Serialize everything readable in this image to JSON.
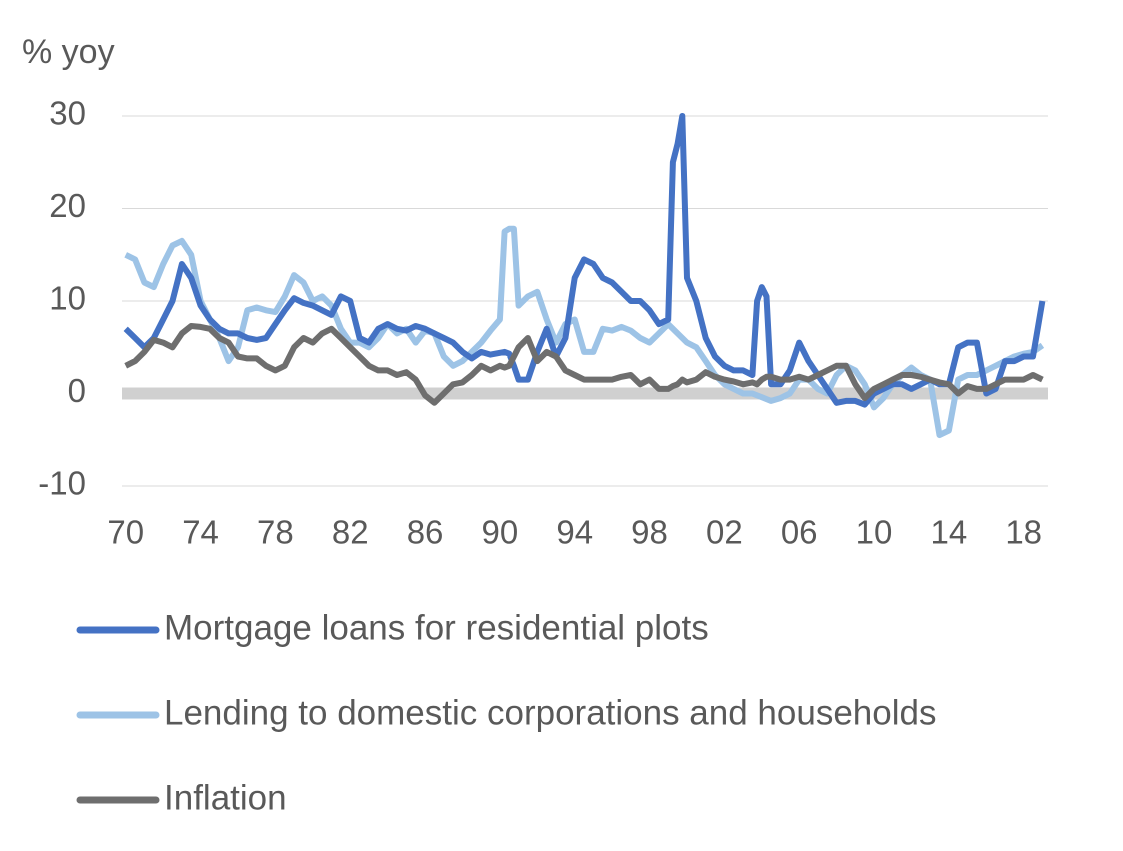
{
  "chart_data": {
    "type": "line",
    "y_label": "% yoy",
    "x": [
      1970,
      1970.5,
      1971,
      1971.5,
      1972,
      1972.5,
      1973,
      1973.5,
      1974,
      1974.5,
      1975,
      1975.5,
      1976,
      1976.5,
      1977,
      1977.5,
      1978,
      1978.5,
      1979,
      1979.5,
      1980,
      1980.5,
      1981,
      1981.5,
      1982,
      1982.5,
      1983,
      1983.5,
      1984,
      1984.5,
      1985,
      1985.5,
      1986,
      1986.5,
      1987,
      1987.5,
      1988,
      1988.5,
      1989,
      1989.5,
      1990,
      1990.25,
      1990.5,
      1990.75,
      1991,
      1991.5,
      1992,
      1992.5,
      1993,
      1993.5,
      1994,
      1994.5,
      1995,
      1995.5,
      1996,
      1996.5,
      1997,
      1997.5,
      1998,
      1998.5,
      1999,
      1999.25,
      1999.5,
      1999.75,
      2000,
      2000.5,
      2001,
      2001.5,
      2002,
      2002.5,
      2003,
      2003.5,
      2003.75,
      2004,
      2004.25,
      2004.5,
      2005,
      2005.5,
      2006,
      2006.5,
      2007,
      2007.5,
      2008,
      2008.5,
      2009,
      2009.5,
      2010,
      2010.5,
      2011,
      2011.5,
      2012,
      2012.5,
      2013,
      2013.5,
      2014,
      2014.5,
      2015,
      2015.5,
      2016,
      2016.5,
      2017,
      2017.5,
      2018,
      2018.5,
      2019
    ],
    "series": [
      {
        "name": "Mortgage loans for residential plots",
        "color": "#4472c4",
        "values": [
          7,
          6,
          5,
          6,
          8,
          10,
          14,
          12.5,
          9.5,
          8,
          7,
          6.5,
          6.5,
          6,
          5.8,
          6,
          7.5,
          9,
          10.3,
          9.8,
          9.5,
          9,
          8.5,
          10.5,
          10,
          6,
          5.5,
          7,
          7.5,
          7,
          6.8,
          7.3,
          7,
          6.5,
          6,
          5.5,
          4.5,
          3.8,
          4.5,
          4.2,
          4.4,
          4.5,
          4.3,
          3,
          1.5,
          1.5,
          4.5,
          7,
          4,
          6,
          12.5,
          14.5,
          14,
          12.5,
          12,
          11,
          10,
          10,
          9,
          7.5,
          8,
          25,
          27,
          30,
          12.5,
          10,
          6,
          4,
          3,
          2.5,
          2.5,
          2,
          10,
          11.5,
          10.5,
          1,
          1,
          2.5,
          5.5,
          3.5,
          2,
          0.5,
          -1,
          -0.8,
          -0.8,
          -1.2,
          0,
          0.5,
          1,
          1,
          0.5,
          1,
          1.5,
          1,
          1,
          5,
          5.5,
          5.5,
          0,
          0.5,
          3.5,
          3.5,
          4,
          4,
          10
        ]
      },
      {
        "name": "Lending to domestic corporations and households",
        "color": "#9dc3e6",
        "values": [
          15,
          14.5,
          12,
          11.5,
          14,
          16,
          16.5,
          15,
          10,
          8,
          6,
          3.5,
          5,
          9,
          9.3,
          9,
          8.8,
          10.5,
          12.8,
          12,
          10,
          10.5,
          9.5,
          7,
          5.5,
          5.5,
          5,
          6,
          7.5,
          6.5,
          7,
          5.5,
          6.8,
          6.5,
          4,
          3,
          3.5,
          4.5,
          5.5,
          6.8,
          8,
          17.5,
          17.8,
          17.8,
          9.5,
          10.5,
          11,
          8,
          5.5,
          7.5,
          8,
          4.5,
          4.5,
          7,
          6.8,
          7.2,
          6.8,
          6,
          5.5,
          6.5,
          7.5,
          7,
          6.5,
          6,
          5.5,
          5,
          3.5,
          2,
          1,
          0.5,
          0,
          0,
          -0.2,
          -0.4,
          -0.6,
          -0.8,
          -0.5,
          0,
          1.5,
          1.5,
          0.5,
          0,
          2,
          3,
          2.5,
          1,
          -1.5,
          -0.5,
          1,
          2,
          2.8,
          2,
          1.5,
          -4.5,
          -4,
          1.5,
          2,
          2,
          2.5,
          3,
          3.5,
          4,
          4.3,
          4.5,
          5.2
        ]
      },
      {
        "name": "Inflation",
        "color": "#6e6e6e",
        "values": [
          3,
          3.5,
          4.5,
          5.8,
          5.5,
          5,
          6.5,
          7.3,
          7.2,
          7,
          6,
          5.5,
          4,
          3.8,
          3.8,
          3,
          2.5,
          3,
          5,
          6,
          5.5,
          6.5,
          7,
          6,
          5,
          4,
          3,
          2.5,
          2.5,
          2,
          2.3,
          1.5,
          -0.2,
          -1,
          0,
          1,
          1.2,
          2,
          3,
          2.5,
          3,
          2.8,
          3,
          4,
          5,
          6,
          3.5,
          4.5,
          4,
          2.5,
          2,
          1.5,
          1.5,
          1.5,
          1.5,
          1.8,
          2,
          1,
          1.5,
          0.5,
          0.5,
          0.8,
          1,
          1.5,
          1.2,
          1.5,
          2.3,
          1.8,
          1.5,
          1.3,
          1,
          1.2,
          1,
          1.5,
          1.8,
          1.8,
          1.5,
          1.5,
          1.8,
          1.5,
          2,
          2.5,
          3,
          3,
          1,
          -0.5,
          0.5,
          1,
          1.5,
          2,
          2,
          1.8,
          1.5,
          1.2,
          1,
          0,
          0.8,
          0.5,
          0.5,
          1,
          1.5,
          1.5,
          1.5,
          2,
          1.5
        ]
      }
    ],
    "xlim": [
      1969.8,
      2019.3
    ],
    "xticks": [
      {
        "value": 1970,
        "label": "70"
      },
      {
        "value": 1974,
        "label": "74"
      },
      {
        "value": 1978,
        "label": "78"
      },
      {
        "value": 1982,
        "label": "82"
      },
      {
        "value": 1986,
        "label": "86"
      },
      {
        "value": 1990,
        "label": "90"
      },
      {
        "value": 1994,
        "label": "94"
      },
      {
        "value": 1998,
        "label": "98"
      },
      {
        "value": 2002,
        "label": "02"
      },
      {
        "value": 2006,
        "label": "06"
      },
      {
        "value": 2010,
        "label": "10"
      },
      {
        "value": 2014,
        "label": "14"
      },
      {
        "value": 2018,
        "label": "18"
      }
    ],
    "ylim": [
      -10,
      30
    ],
    "yticks": [
      -10,
      0,
      10,
      20,
      30
    ],
    "grid": true,
    "legend": "bottom"
  }
}
